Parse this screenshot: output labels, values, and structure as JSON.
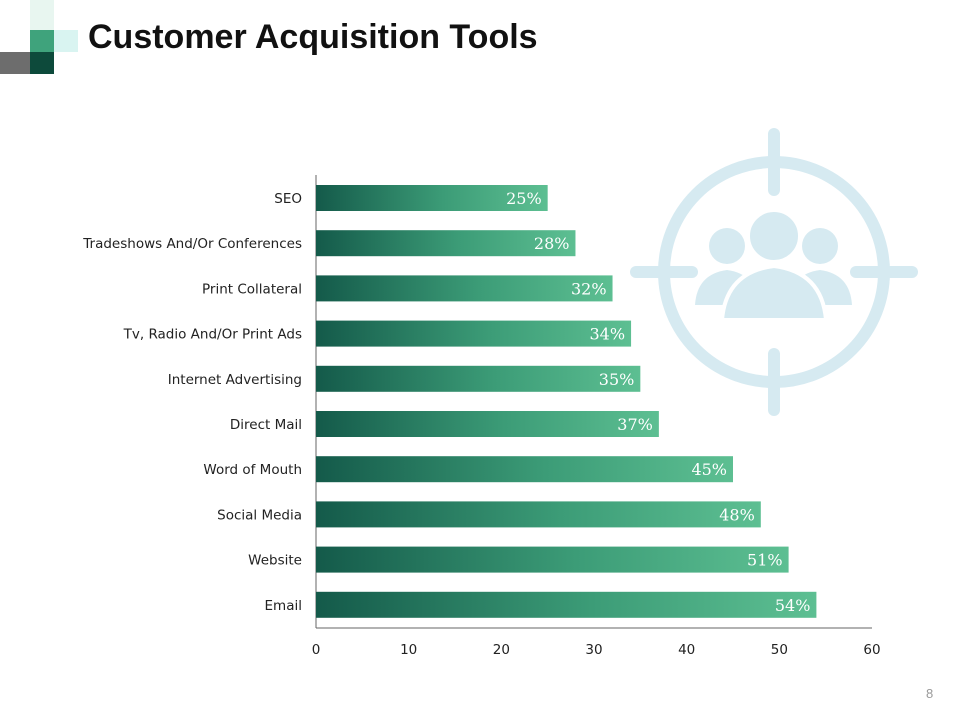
{
  "title": "Customer Acquisition Tools",
  "page_number": "8",
  "colors": {
    "bar_gradient_start": "#145a4a",
    "bar_gradient_end": "#5dbf92",
    "accent_teal": "#3fa37c",
    "accent_dark": "#0d4a3b",
    "accent_light": "#d9f4f1",
    "accent_gray": "#6d6d6d",
    "icon_color": "#d6eaf1",
    "axis_color": "#666666"
  },
  "icons": {
    "decor": "target-audience-icon"
  },
  "chart_data": {
    "type": "bar",
    "orientation": "horizontal",
    "title": "",
    "xlabel": "",
    "ylabel": "",
    "categories": [
      "SEO",
      "Tradeshows And/Or Conferences",
      "Print Collateral",
      "Tv, Radio And/Or Print Ads",
      "Internet Advertising",
      "Direct Mail",
      "Word of Mouth",
      "Social Media",
      "Website",
      "Email"
    ],
    "values": [
      25,
      28,
      32,
      34,
      35,
      37,
      45,
      48,
      51,
      54
    ],
    "data_labels": [
      "25%",
      "28%",
      "32%",
      "34%",
      "35%",
      "37%",
      "45%",
      "48%",
      "51%",
      "54%"
    ],
    "xlim": [
      0,
      60
    ],
    "xticks": [
      0,
      10,
      20,
      30,
      40,
      50,
      60
    ],
    "grid": false,
    "legend": "none"
  }
}
